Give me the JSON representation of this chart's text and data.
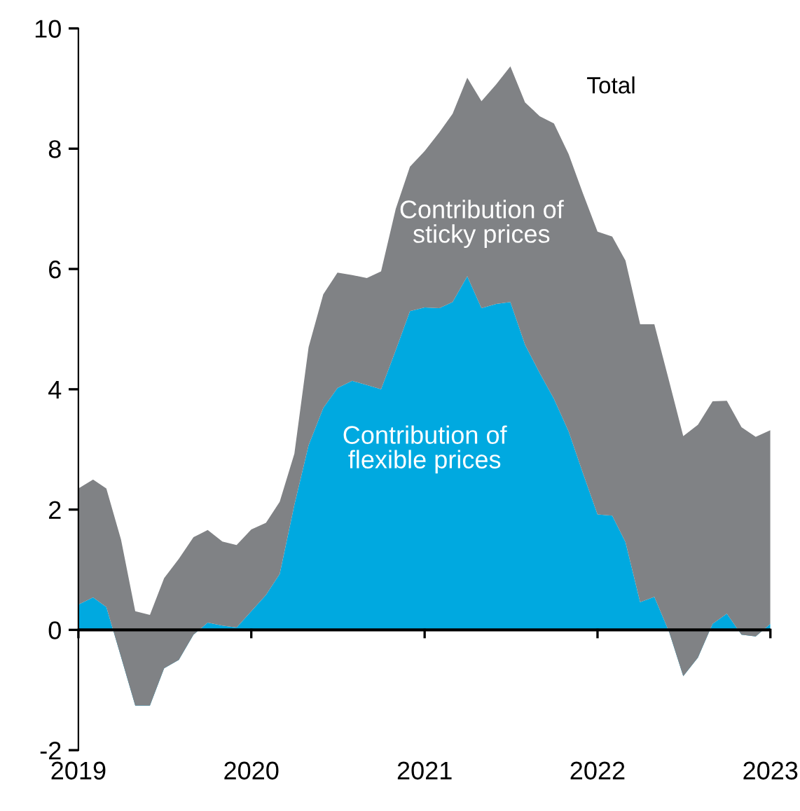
{
  "chart_data": {
    "type": "area",
    "stacked": true,
    "x": [
      "2019-01",
      "2019-02",
      "2019-03",
      "2019-04",
      "2019-05",
      "2019-06",
      "2019-07",
      "2019-08",
      "2019-09",
      "2019-10",
      "2019-11",
      "2019-12",
      "2020-01",
      "2020-02",
      "2020-03",
      "2020-04",
      "2020-05",
      "2020-06",
      "2020-07",
      "2020-08",
      "2020-09",
      "2020-10",
      "2020-11",
      "2020-12",
      "2021-01",
      "2021-02",
      "2021-03",
      "2021-04",
      "2021-05",
      "2021-06",
      "2021-07",
      "2021-08",
      "2021-09",
      "2021-10",
      "2021-11",
      "2021-12",
      "2022-01",
      "2022-02",
      "2022-03",
      "2022-04",
      "2022-05",
      "2022-06",
      "2022-07",
      "2022-08",
      "2022-09",
      "2022-10",
      "2022-11",
      "2022-12",
      "2023-01"
    ],
    "series": [
      {
        "name": "Contribution of flexible prices",
        "color": "#00a9e0",
        "values": [
          0.42,
          0.54,
          0.38,
          -0.45,
          -1.26,
          -1.26,
          -0.64,
          -0.5,
          -0.08,
          0.12,
          0.07,
          0.04,
          0.31,
          0.58,
          0.93,
          2.08,
          3.07,
          3.69,
          4.02,
          4.14,
          4.07,
          4.0,
          4.65,
          5.3,
          5.36,
          5.35,
          5.45,
          5.88,
          5.35,
          5.42,
          5.45,
          4.74,
          4.27,
          3.84,
          3.3,
          2.61,
          1.92,
          1.9,
          1.46,
          0.46,
          0.55,
          -0.03,
          -0.77,
          -0.46,
          0.1,
          0.27,
          -0.08,
          -0.11,
          0.1
        ]
      },
      {
        "name": "Contribution of sticky prices",
        "color": "#808285",
        "values": [
          1.93,
          1.96,
          1.97,
          1.95,
          1.57,
          1.51,
          1.5,
          1.68,
          1.62,
          1.54,
          1.4,
          1.37,
          1.36,
          1.2,
          1.2,
          0.85,
          1.63,
          1.89,
          1.92,
          1.76,
          1.78,
          1.96,
          2.35,
          2.4,
          2.6,
          2.92,
          3.13,
          3.3,
          3.44,
          3.65,
          3.92,
          4.03,
          4.27,
          4.58,
          4.61,
          4.65,
          4.7,
          4.64,
          4.68,
          4.62,
          4.53,
          4.17,
          3.99,
          3.87,
          3.7,
          3.54,
          3.45,
          3.32,
          3.22
        ]
      }
    ],
    "annotations": [
      "Total"
    ],
    "ref_lines": [
      {
        "axis": "y",
        "value": 0,
        "color": "#000000"
      }
    ],
    "xlim": [
      "2019-01",
      "2023-01"
    ],
    "xticks": [
      {
        "value": "2019-01",
        "label": "2019"
      },
      {
        "value": "2020-01",
        "label": "2020"
      },
      {
        "value": "2021-01",
        "label": "2021"
      },
      {
        "value": "2022-01",
        "label": "2022"
      },
      {
        "value": "2023-01",
        "label": "2023"
      }
    ],
    "ylim": [
      -2,
      10
    ],
    "yticks": [
      -2,
      0,
      2,
      4,
      6,
      8,
      10
    ],
    "grid": false,
    "legend": false
  }
}
